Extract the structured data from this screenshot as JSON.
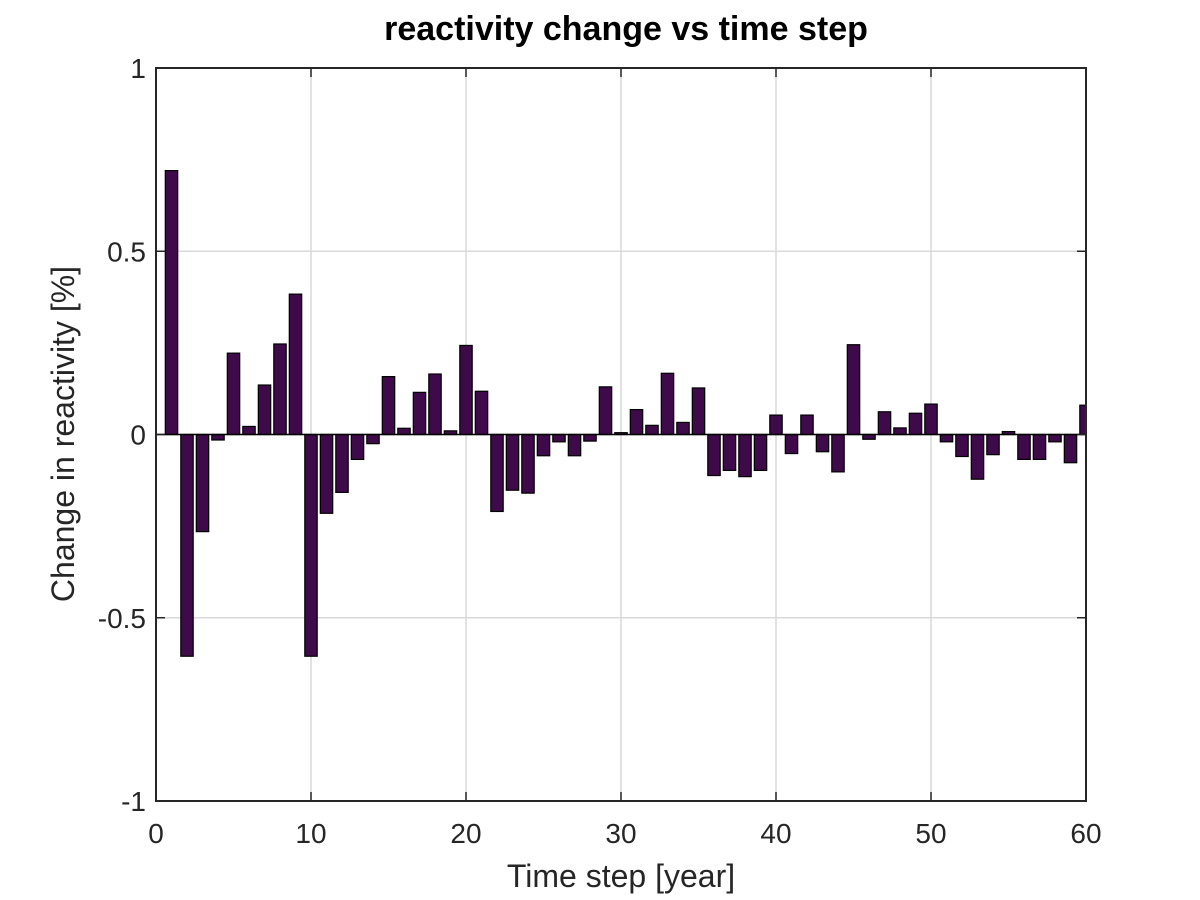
{
  "chart_data": {
    "type": "bar",
    "title": "reactivity change vs time step",
    "xlabel": "Time step [year]",
    "ylabel": "Change in reactivity [%]",
    "xlim": [
      0,
      60
    ],
    "ylim": [
      -1,
      1
    ],
    "xticks": [
      "0",
      "10",
      "20",
      "30",
      "40",
      "50",
      "60"
    ],
    "yticks": [
      "1",
      "0.5",
      "0",
      "-0.5",
      "-1"
    ],
    "grid": true,
    "bar_color": "#3f0a4a",
    "x": [
      1,
      2,
      3,
      4,
      5,
      6,
      7,
      8,
      9,
      10,
      11,
      12,
      13,
      14,
      15,
      16,
      17,
      18,
      19,
      20,
      21,
      22,
      23,
      24,
      25,
      26,
      27,
      28,
      29,
      30,
      31,
      32,
      33,
      34,
      35,
      36,
      37,
      38,
      39,
      40,
      41,
      42,
      43,
      44,
      45,
      46,
      47,
      48,
      49,
      50,
      51,
      52,
      53,
      54,
      55,
      56,
      57,
      58,
      59,
      60
    ],
    "values": [
      0.72,
      -0.605,
      -0.265,
      -0.015,
      0.222,
      0.022,
      0.135,
      0.247,
      0.383,
      -0.605,
      -0.215,
      -0.158,
      -0.068,
      -0.025,
      0.158,
      0.017,
      0.115,
      0.165,
      0.01,
      0.243,
      0.118,
      -0.21,
      -0.152,
      -0.16,
      -0.058,
      -0.02,
      -0.058,
      -0.018,
      0.13,
      0.005,
      0.068,
      0.025,
      0.167,
      0.033,
      0.127,
      -0.112,
      -0.098,
      -0.115,
      -0.098,
      0.053,
      -0.052,
      0.053,
      -0.047,
      -0.102,
      0.245,
      -0.013,
      0.062,
      0.018,
      0.058,
      0.083,
      -0.02,
      -0.06,
      -0.122,
      -0.055,
      0.008,
      -0.068,
      -0.068,
      -0.02,
      -0.077,
      0.08
    ]
  }
}
